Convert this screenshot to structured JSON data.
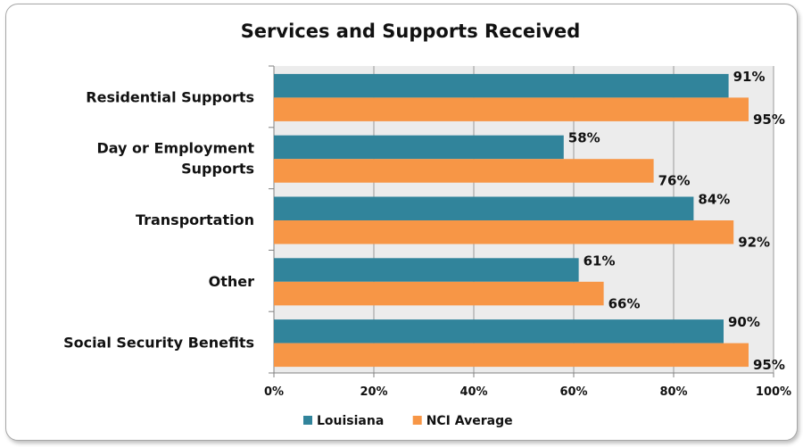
{
  "chart_data": {
    "type": "bar",
    "orientation": "horizontal",
    "title": "Services and Supports Received",
    "categories": [
      [
        "Residential Supports"
      ],
      [
        "Day or Employment",
        "Supports"
      ],
      [
        "Transportation"
      ],
      [
        "Other"
      ],
      [
        "Social Security Benefits"
      ]
    ],
    "series": [
      {
        "name": "Louisiana",
        "color": "#31849b",
        "values": [
          91,
          58,
          84,
          61,
          90
        ],
        "labels": [
          "91%",
          "58%",
          "84%",
          "61%",
          "90%"
        ]
      },
      {
        "name": "NCI Average",
        "color": "#f79646",
        "values": [
          95,
          76,
          92,
          66,
          95
        ],
        "labels": [
          "95%",
          "76%",
          "92%",
          "66%",
          "95%"
        ]
      }
    ],
    "xlim": [
      0,
      100
    ],
    "xticks": [
      "0%",
      "20%",
      "40%",
      "60%",
      "80%",
      "100%"
    ],
    "grid": true,
    "legend": "bottom",
    "plot_background": "#ececec"
  }
}
